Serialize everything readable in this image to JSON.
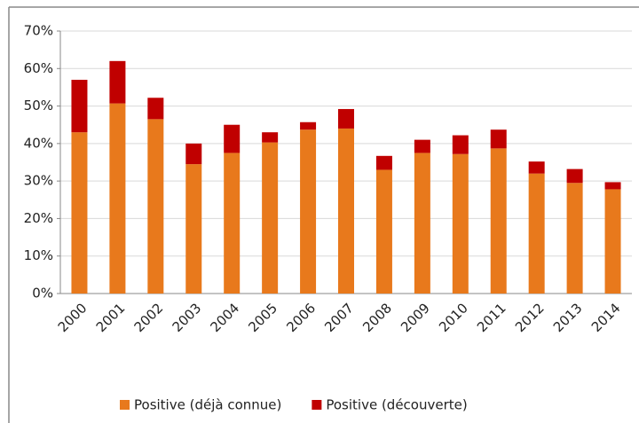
{
  "chart_data": {
    "type": "stacked_bar",
    "categories": [
      "2000",
      "2001",
      "2002",
      "2003",
      "2004",
      "2005",
      "2006",
      "2007",
      "2008",
      "2009",
      "2010",
      "2011",
      "2012",
      "2013",
      "2014"
    ],
    "series": [
      {
        "name": "Positive (déjà connue)",
        "color": "#e8791c",
        "values": [
          43,
          50.7,
          46.5,
          34.5,
          37.5,
          40.3,
          43.7,
          44,
          33,
          37.5,
          37.2,
          38.7,
          32,
          29.5,
          27.8
        ]
      },
      {
        "name": "Positive (découverte)",
        "color": "#c00000",
        "values": [
          14,
          11.3,
          5.7,
          5.5,
          7.5,
          2.7,
          2,
          5.2,
          3.7,
          3.5,
          5,
          5,
          3.2,
          3.7,
          1.9
        ]
      }
    ],
    "ylim": [
      0,
      70
    ],
    "yticks": [
      {
        "value": 0,
        "label": "0%"
      },
      {
        "value": 10,
        "label": "10%"
      },
      {
        "value": 20,
        "label": "20%"
      },
      {
        "value": 30,
        "label": "30%"
      },
      {
        "value": 40,
        "label": "40%"
      },
      {
        "value": 50,
        "label": "50%"
      },
      {
        "value": 60,
        "label": "60%"
      },
      {
        "value": 70,
        "label": "70%"
      }
    ],
    "grid": true,
    "legend": "bottom"
  }
}
